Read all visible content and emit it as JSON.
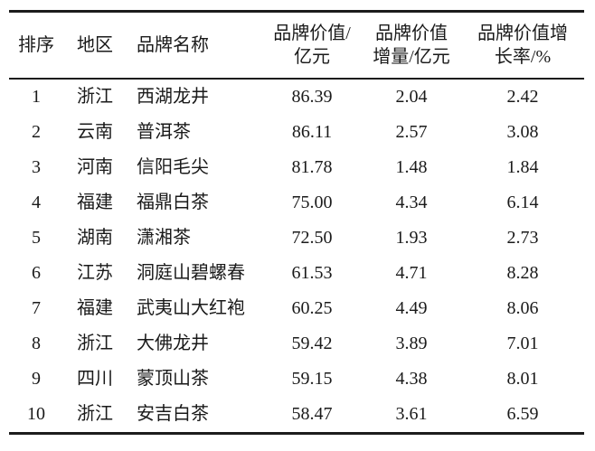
{
  "colors": {
    "background": "#ffffff",
    "text": "#1a1a1a",
    "rule": "#1c1c1c"
  },
  "table": {
    "columns": [
      {
        "key": "rank",
        "label": "排序"
      },
      {
        "key": "region",
        "label": "地区"
      },
      {
        "key": "brand",
        "label": "品牌名称"
      },
      {
        "key": "value",
        "label": "品牌价值/\n亿元"
      },
      {
        "key": "increment",
        "label": "品牌价值\n增量/亿元"
      },
      {
        "key": "growth",
        "label": "品牌价值增\n长率/%"
      }
    ],
    "rows": [
      {
        "rank": "1",
        "region": "浙江",
        "brand": "西湖龙井",
        "value": "86.39",
        "increment": "2.04",
        "growth": "2.42"
      },
      {
        "rank": "2",
        "region": "云南",
        "brand": "普洱茶",
        "value": "86.11",
        "increment": "2.57",
        "growth": "3.08"
      },
      {
        "rank": "3",
        "region": "河南",
        "brand": "信阳毛尖",
        "value": "81.78",
        "increment": "1.48",
        "growth": "1.84"
      },
      {
        "rank": "4",
        "region": "福建",
        "brand": "福鼎白茶",
        "value": "75.00",
        "increment": "4.34",
        "growth": "6.14"
      },
      {
        "rank": "5",
        "region": "湖南",
        "brand": "潇湘茶",
        "value": "72.50",
        "increment": "1.93",
        "growth": "2.73"
      },
      {
        "rank": "6",
        "region": "江苏",
        "brand": "洞庭山碧螺春",
        "value": "61.53",
        "increment": "4.71",
        "growth": "8.28"
      },
      {
        "rank": "7",
        "region": "福建",
        "brand": "武夷山大红袍",
        "value": "60.25",
        "increment": "4.49",
        "growth": "8.06"
      },
      {
        "rank": "8",
        "region": "浙江",
        "brand": "大佛龙井",
        "value": "59.42",
        "increment": "3.89",
        "growth": "7.01"
      },
      {
        "rank": "9",
        "region": "四川",
        "brand": "蒙顶山茶",
        "value": "59.15",
        "increment": "4.38",
        "growth": "8.01"
      },
      {
        "rank": "10",
        "region": "浙江",
        "brand": "安吉白茶",
        "value": "58.47",
        "increment": "3.61",
        "growth": "6.59"
      }
    ]
  }
}
